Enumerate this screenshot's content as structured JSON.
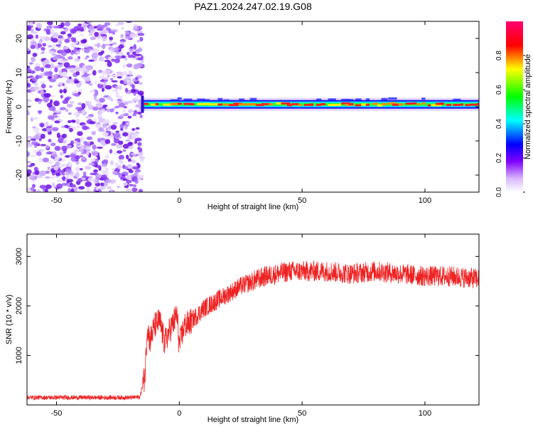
{
  "title": "PAZ1.2024.247.02.19.G08",
  "chart_data": [
    {
      "type": "heatmap",
      "xlabel": "Height of straight line (km)",
      "ylabel": "Frequency (Hz)",
      "xlim": [
        -62,
        122
      ],
      "ylim": [
        -25,
        25
      ],
      "xticks": [
        -50,
        0,
        50,
        100
      ],
      "yticks": [
        -20,
        -10,
        0,
        10,
        20
      ],
      "colorbar": {
        "label": "Normalized spectral amplitude",
        "range": [
          0,
          1
        ],
        "ticks": [
          "0.0",
          "0.2",
          "0.4",
          "0.6",
          "0.8"
        ],
        "colormap": [
          "#ffffff",
          "#8000ff",
          "#0000ff",
          "#00ffff",
          "#00ff00",
          "#ffff00",
          "#ff0000",
          "#ff0080"
        ]
      },
      "noise_region_x": [
        -62,
        -15
      ],
      "signal_region_x": [
        -15,
        122
      ],
      "signal_frequency_hz": 0.7,
      "grid": false
    },
    {
      "type": "line",
      "xlabel": "Height of straight line (km)",
      "ylabel": "SNR (10 * v/v)",
      "xlim": [
        -62,
        122
      ],
      "ylim": [
        0,
        3450
      ],
      "xticks": [
        -50,
        0,
        50,
        100
      ],
      "yticks": [
        1000,
        2000,
        3000
      ],
      "line_color": "#ee2222",
      "grid": false,
      "series": [
        {
          "x": [
            -62,
            -50,
            -40,
            -30,
            -20,
            -16,
            -14,
            -13,
            -12,
            -10,
            -8,
            -6,
            -4,
            -2,
            -1,
            0,
            2,
            4,
            6,
            8,
            10,
            15,
            20,
            25,
            30,
            35,
            40,
            45,
            50,
            55,
            60,
            70,
            80,
            90,
            100,
            110,
            122
          ],
          "values": [
            150,
            150,
            150,
            150,
            150,
            160,
            600,
            1600,
            1300,
            1600,
            1700,
            1250,
            1500,
            1700,
            1850,
            1200,
            1600,
            1650,
            1750,
            1850,
            1950,
            2100,
            2250,
            2400,
            2500,
            2600,
            2650,
            2700,
            2700,
            2700,
            2700,
            2650,
            2700,
            2650,
            2600,
            2600,
            2550
          ]
        }
      ]
    }
  ]
}
